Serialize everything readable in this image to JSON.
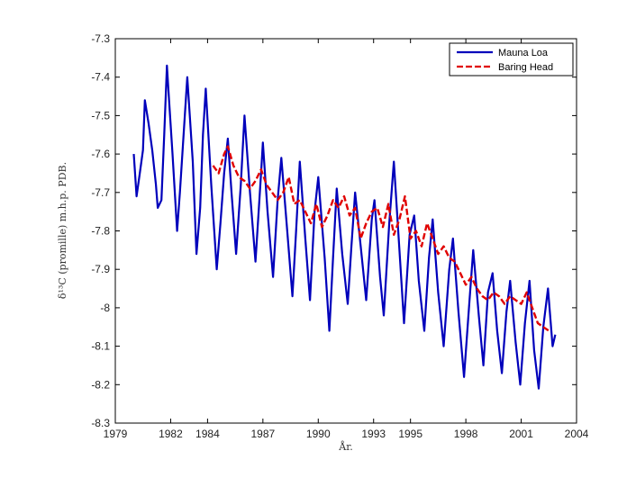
{
  "chart_data": {
    "type": "line",
    "title": "",
    "xlabel": "År.",
    "ylabel": "δ¹³C (promille) m.h.p. PDB.",
    "xlim": [
      1979,
      2004
    ],
    "ylim": [
      -8.3,
      -7.3
    ],
    "xticks": [
      1979,
      1982,
      1984,
      1987,
      1990,
      1993,
      1995,
      1998,
      2001,
      2004
    ],
    "xtick_labels": [
      "1979",
      "1982",
      "1984",
      "1987",
      "1990",
      "1993",
      "1995",
      "1998",
      "2001",
      "2004"
    ],
    "yticks": [
      -7.3,
      -7.4,
      -7.5,
      -7.6,
      -7.7,
      -7.8,
      -7.9,
      -8.0,
      -8.1,
      -8.2,
      -8.3
    ],
    "ytick_labels": [
      "-7.3",
      "-7.4",
      "-7.5",
      "-7.6",
      "-7.7",
      "-7.8",
      "-7.9",
      "-8",
      "-8.1",
      "-8.2",
      "-8.3"
    ],
    "grid": false,
    "legend_position": "top-right",
    "series": [
      {
        "name": "Mauna Loa",
        "color": "#0000bb",
        "style": "solid",
        "points": [
          [
            1980.0,
            -7.6
          ],
          [
            1980.15,
            -7.71
          ],
          [
            1980.3,
            -7.66
          ],
          [
            1980.5,
            -7.59
          ],
          [
            1980.6,
            -7.46
          ],
          [
            1980.8,
            -7.52
          ],
          [
            1981.0,
            -7.59
          ],
          [
            1981.2,
            -7.68
          ],
          [
            1981.3,
            -7.74
          ],
          [
            1981.5,
            -7.72
          ],
          [
            1981.65,
            -7.55
          ],
          [
            1981.8,
            -7.37
          ],
          [
            1981.9,
            -7.45
          ],
          [
            1982.1,
            -7.6
          ],
          [
            1982.35,
            -7.8
          ],
          [
            1982.5,
            -7.7
          ],
          [
            1982.7,
            -7.55
          ],
          [
            1982.9,
            -7.4
          ],
          [
            1983.2,
            -7.62
          ],
          [
            1983.4,
            -7.86
          ],
          [
            1983.6,
            -7.74
          ],
          [
            1983.75,
            -7.55
          ],
          [
            1983.9,
            -7.43
          ],
          [
            1984.2,
            -7.68
          ],
          [
            1984.5,
            -7.9
          ],
          [
            1984.7,
            -7.78
          ],
          [
            1984.9,
            -7.65
          ],
          [
            1985.1,
            -7.56
          ],
          [
            1985.3,
            -7.7
          ],
          [
            1985.55,
            -7.86
          ],
          [
            1985.8,
            -7.68
          ],
          [
            1986.0,
            -7.5
          ],
          [
            1986.3,
            -7.7
          ],
          [
            1986.6,
            -7.88
          ],
          [
            1986.9,
            -7.65
          ],
          [
            1987.0,
            -7.57
          ],
          [
            1987.25,
            -7.75
          ],
          [
            1987.55,
            -7.92
          ],
          [
            1987.8,
            -7.72
          ],
          [
            1988.0,
            -7.61
          ],
          [
            1988.3,
            -7.79
          ],
          [
            1988.6,
            -7.97
          ],
          [
            1988.8,
            -7.8
          ],
          [
            1989.0,
            -7.62
          ],
          [
            1989.3,
            -7.82
          ],
          [
            1989.55,
            -7.98
          ],
          [
            1989.8,
            -7.75
          ],
          [
            1990.0,
            -7.66
          ],
          [
            1990.35,
            -7.87
          ],
          [
            1990.6,
            -8.06
          ],
          [
            1990.8,
            -7.87
          ],
          [
            1991.0,
            -7.69
          ],
          [
            1991.3,
            -7.86
          ],
          [
            1991.6,
            -7.99
          ],
          [
            1991.8,
            -7.84
          ],
          [
            1992.0,
            -7.7
          ],
          [
            1992.3,
            -7.84
          ],
          [
            1992.6,
            -7.98
          ],
          [
            1992.9,
            -7.77
          ],
          [
            1993.05,
            -7.72
          ],
          [
            1993.35,
            -7.92
          ],
          [
            1993.55,
            -8.02
          ],
          [
            1993.85,
            -7.78
          ],
          [
            1994.1,
            -7.62
          ],
          [
            1994.4,
            -7.85
          ],
          [
            1994.65,
            -8.04
          ],
          [
            1994.95,
            -7.81
          ],
          [
            1995.2,
            -7.76
          ],
          [
            1995.45,
            -7.93
          ],
          [
            1995.75,
            -8.06
          ],
          [
            1996.0,
            -7.87
          ],
          [
            1996.2,
            -7.77
          ],
          [
            1996.5,
            -7.96
          ],
          [
            1996.8,
            -8.1
          ],
          [
            1997.1,
            -7.9
          ],
          [
            1997.3,
            -7.82
          ],
          [
            1997.6,
            -8.01
          ],
          [
            1997.9,
            -8.18
          ],
          [
            1998.2,
            -7.98
          ],
          [
            1998.4,
            -7.85
          ],
          [
            1998.7,
            -8.02
          ],
          [
            1998.95,
            -8.15
          ],
          [
            1999.2,
            -7.96
          ],
          [
            1999.45,
            -7.91
          ],
          [
            1999.7,
            -8.06
          ],
          [
            1999.95,
            -8.17
          ],
          [
            2000.2,
            -8.01
          ],
          [
            2000.4,
            -7.93
          ],
          [
            2000.7,
            -8.09
          ],
          [
            2000.95,
            -8.2
          ],
          [
            2001.2,
            -8.04
          ],
          [
            2001.45,
            -7.93
          ],
          [
            2001.7,
            -8.11
          ],
          [
            2001.95,
            -8.21
          ],
          [
            2002.2,
            -8.05
          ],
          [
            2002.45,
            -7.95
          ],
          [
            2002.7,
            -8.1
          ],
          [
            2002.85,
            -8.07
          ]
        ]
      },
      {
        "name": "Baring Head",
        "color": "#e00000",
        "style": "dash",
        "points": [
          [
            1984.3,
            -7.63
          ],
          [
            1984.6,
            -7.65
          ],
          [
            1984.9,
            -7.6
          ],
          [
            1985.1,
            -7.58
          ],
          [
            1985.4,
            -7.63
          ],
          [
            1985.7,
            -7.66
          ],
          [
            1986.0,
            -7.67
          ],
          [
            1986.3,
            -7.69
          ],
          [
            1986.6,
            -7.67
          ],
          [
            1986.9,
            -7.64
          ],
          [
            1987.2,
            -7.68
          ],
          [
            1987.5,
            -7.7
          ],
          [
            1987.8,
            -7.72
          ],
          [
            1988.1,
            -7.7
          ],
          [
            1988.4,
            -7.66
          ],
          [
            1988.7,
            -7.73
          ],
          [
            1989.0,
            -7.72
          ],
          [
            1989.3,
            -7.75
          ],
          [
            1989.6,
            -7.78
          ],
          [
            1989.9,
            -7.73
          ],
          [
            1990.2,
            -7.79
          ],
          [
            1990.5,
            -7.76
          ],
          [
            1990.8,
            -7.72
          ],
          [
            1991.1,
            -7.74
          ],
          [
            1991.4,
            -7.71
          ],
          [
            1991.7,
            -7.76
          ],
          [
            1992.0,
            -7.74
          ],
          [
            1992.3,
            -7.82
          ],
          [
            1992.6,
            -7.78
          ],
          [
            1992.9,
            -7.75
          ],
          [
            1993.2,
            -7.74
          ],
          [
            1993.5,
            -7.79
          ],
          [
            1993.8,
            -7.73
          ],
          [
            1994.1,
            -7.81
          ],
          [
            1994.4,
            -7.77
          ],
          [
            1994.7,
            -7.71
          ],
          [
            1995.0,
            -7.82
          ],
          [
            1995.3,
            -7.8
          ],
          [
            1995.6,
            -7.84
          ],
          [
            1995.9,
            -7.78
          ],
          [
            1996.2,
            -7.82
          ],
          [
            1996.5,
            -7.86
          ],
          [
            1996.8,
            -7.84
          ],
          [
            1997.1,
            -7.87
          ],
          [
            1997.4,
            -7.88
          ],
          [
            1997.7,
            -7.91
          ],
          [
            1998.0,
            -7.94
          ],
          [
            1998.3,
            -7.92
          ],
          [
            1998.6,
            -7.95
          ],
          [
            1998.9,
            -7.97
          ],
          [
            1999.2,
            -7.98
          ],
          [
            1999.5,
            -7.96
          ],
          [
            1999.8,
            -7.97
          ],
          [
            2000.1,
            -7.99
          ],
          [
            2000.4,
            -7.97
          ],
          [
            2000.7,
            -7.98
          ],
          [
            2001.0,
            -7.99
          ],
          [
            2001.3,
            -7.96
          ],
          [
            2001.6,
            -8.0
          ],
          [
            2001.9,
            -8.04
          ],
          [
            2002.2,
            -8.05
          ],
          [
            2002.5,
            -8.06
          ]
        ]
      }
    ]
  }
}
